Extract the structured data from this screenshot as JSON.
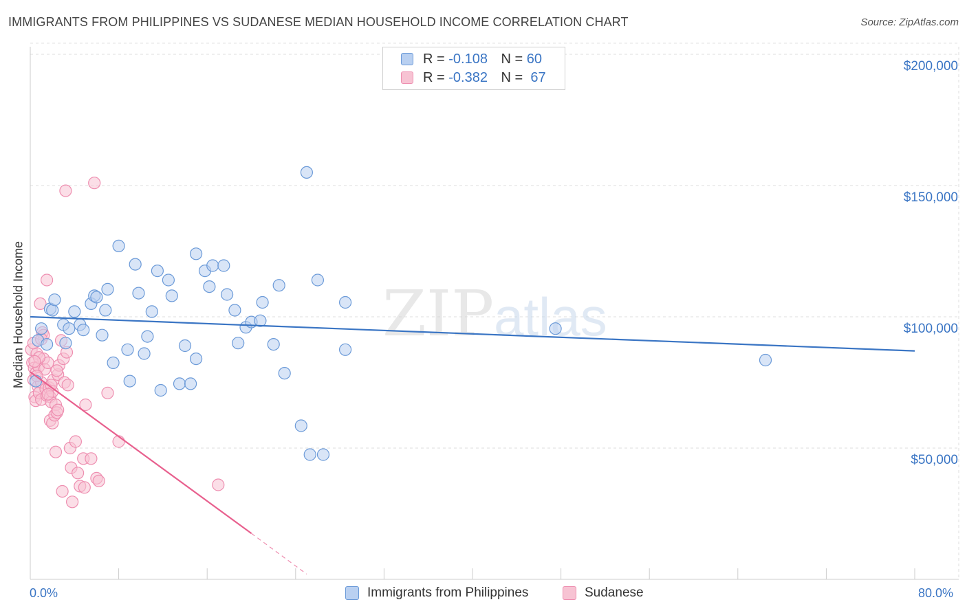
{
  "header": {
    "title": "IMMIGRANTS FROM PHILIPPINES VS SUDANESE MEDIAN HOUSEHOLD INCOME CORRELATION CHART",
    "source": "Source: ZipAtlas.com"
  },
  "watermark": {
    "zip": "ZIP",
    "atlas": "atlas"
  },
  "legend_top": [
    {
      "r_label": "R =",
      "r_value": "-0.108",
      "n_label": "N =",
      "n_value": "60"
    },
    {
      "r_label": "R =",
      "r_value": "-0.382",
      "n_label": "N =",
      "n_value": "67"
    }
  ],
  "colors": {
    "blue": "#3a75c4",
    "blue_fill": "#b9d0f1",
    "blue_stroke": "#6b9ad8",
    "pink": "#e8608e",
    "pink_fill": "#f7c3d3",
    "pink_stroke": "#ee8eb0",
    "grid": "#dddddd"
  },
  "chart_data": {
    "type": "scatter",
    "title": "IMMIGRANTS FROM PHILIPPINES VS SUDANESE MEDIAN HOUSEHOLD INCOME CORRELATION CHART",
    "xlabel": "",
    "ylabel": "Median Household Income",
    "xlim": [
      0,
      80
    ],
    "ylim": [
      0,
      205000
    ],
    "x_tick_labels": [
      "0.0%",
      "80.0%"
    ],
    "y_ticks": [
      {
        "value": 50000,
        "label": "$50,000"
      },
      {
        "value": 100000,
        "label": "$100,000"
      },
      {
        "value": 150000,
        "label": "$150,000"
      },
      {
        "value": 200000,
        "label": "$200,000"
      }
    ],
    "grid": true,
    "legend_position": "bottom",
    "series": [
      {
        "name": "Immigrants from Philippines",
        "color": "blue",
        "r": -0.108,
        "n": 60,
        "trend": {
          "x": [
            0,
            80
          ],
          "y": [
            100000,
            87000
          ]
        },
        "points": [
          [
            0.5,
            75500
          ],
          [
            0.7,
            91000
          ],
          [
            1.0,
            95500
          ],
          [
            1.5,
            89500
          ],
          [
            1.8,
            103000
          ],
          [
            2.0,
            102500
          ],
          [
            2.2,
            106500
          ],
          [
            3.0,
            97000
          ],
          [
            3.2,
            90000
          ],
          [
            3.5,
            95500
          ],
          [
            4.0,
            102000
          ],
          [
            4.5,
            97000
          ],
          [
            4.8,
            95000
          ],
          [
            5.5,
            105000
          ],
          [
            5.8,
            108000
          ],
          [
            6.0,
            107500
          ],
          [
            6.5,
            93000
          ],
          [
            6.8,
            102500
          ],
          [
            7.0,
            110500
          ],
          [
            7.5,
            82500
          ],
          [
            8.0,
            127000
          ],
          [
            8.8,
            87500
          ],
          [
            9.0,
            75500
          ],
          [
            9.5,
            120000
          ],
          [
            9.8,
            109000
          ],
          [
            10.3,
            86000
          ],
          [
            10.6,
            92500
          ],
          [
            11.0,
            102000
          ],
          [
            11.5,
            117500
          ],
          [
            11.8,
            72000
          ],
          [
            12.5,
            114000
          ],
          [
            12.8,
            108000
          ],
          [
            13.5,
            74500
          ],
          [
            14.0,
            89000
          ],
          [
            14.5,
            74500
          ],
          [
            15.0,
            84000
          ],
          [
            15.0,
            124000
          ],
          [
            15.8,
            117500
          ],
          [
            16.2,
            111500
          ],
          [
            16.5,
            119500
          ],
          [
            17.5,
            119500
          ],
          [
            17.8,
            108500
          ],
          [
            18.5,
            102500
          ],
          [
            18.8,
            90000
          ],
          [
            19.5,
            96000
          ],
          [
            20.0,
            98000
          ],
          [
            20.8,
            98500
          ],
          [
            21.0,
            105500
          ],
          [
            22.0,
            89500
          ],
          [
            22.5,
            112000
          ],
          [
            23.0,
            78500
          ],
          [
            24.5,
            58500
          ],
          [
            25.0,
            155000
          ],
          [
            25.3,
            47500
          ],
          [
            26.0,
            114000
          ],
          [
            26.5,
            47500
          ],
          [
            28.5,
            105500
          ],
          [
            28.5,
            87500
          ],
          [
            47.5,
            95500
          ],
          [
            66.5,
            83500
          ]
        ]
      },
      {
        "name": "Sudanese",
        "color": "pink",
        "r": -0.382,
        "n": 67,
        "trend": {
          "x": [
            0,
            20
          ],
          "y": [
            79000,
            17500
          ]
        },
        "trend_dashed": {
          "x": [
            20,
            25
          ],
          "y": [
            17500,
            2000
          ]
        },
        "points": [
          [
            0.1,
            87500
          ],
          [
            0.2,
            82500
          ],
          [
            0.3,
            76000
          ],
          [
            0.35,
            80500
          ],
          [
            0.4,
            69500
          ],
          [
            0.5,
            78500
          ],
          [
            0.5,
            68000
          ],
          [
            0.6,
            86000
          ],
          [
            0.7,
            73500
          ],
          [
            0.75,
            81000
          ],
          [
            0.8,
            71000
          ],
          [
            0.9,
            105000
          ],
          [
            1.0,
            75000
          ],
          [
            1.0,
            68500
          ],
          [
            1.1,
            94000
          ],
          [
            1.2,
            84000
          ],
          [
            1.3,
            80000
          ],
          [
            1.4,
            72500
          ],
          [
            1.5,
            114000
          ],
          [
            1.5,
            70000
          ],
          [
            1.6,
            82500
          ],
          [
            1.7,
            73000
          ],
          [
            1.8,
            69500
          ],
          [
            1.8,
            60500
          ],
          [
            1.9,
            67500
          ],
          [
            2.0,
            71500
          ],
          [
            2.0,
            59500
          ],
          [
            2.1,
            76000
          ],
          [
            2.2,
            62500
          ],
          [
            2.3,
            66500
          ],
          [
            2.3,
            48500
          ],
          [
            2.4,
            63500
          ],
          [
            2.5,
            78000
          ],
          [
            2.5,
            64500
          ],
          [
            2.6,
            81500
          ],
          [
            2.8,
            91000
          ],
          [
            2.9,
            33500
          ],
          [
            3.0,
            84000
          ],
          [
            3.1,
            75000
          ],
          [
            3.2,
            148000
          ],
          [
            3.3,
            86500
          ],
          [
            3.4,
            74000
          ],
          [
            3.6,
            50000
          ],
          [
            3.7,
            42500
          ],
          [
            3.8,
            29500
          ],
          [
            4.1,
            52500
          ],
          [
            4.3,
            40500
          ],
          [
            4.5,
            35500
          ],
          [
            4.8,
            46000
          ],
          [
            4.9,
            35000
          ],
          [
            5.0,
            66500
          ],
          [
            5.5,
            46000
          ],
          [
            5.8,
            151000
          ],
          [
            6.0,
            38500
          ],
          [
            6.2,
            37500
          ],
          [
            7.0,
            71000
          ],
          [
            8.0,
            52500
          ],
          [
            17.0,
            36000
          ],
          [
            0.3,
            90000
          ],
          [
            0.8,
            84500
          ],
          [
            1.2,
            93000
          ],
          [
            0.6,
            77500
          ],
          [
            1.9,
            74000
          ],
          [
            2.4,
            79500
          ],
          [
            0.4,
            83000
          ],
          [
            1.0,
            91500
          ],
          [
            1.6,
            70500
          ]
        ]
      }
    ]
  }
}
